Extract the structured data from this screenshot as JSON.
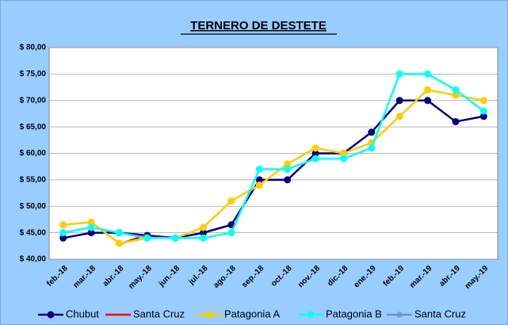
{
  "chart_data": {
    "type": "line",
    "title": "TERNERO DE DESTETE",
    "categories": [
      "feb.-18",
      "mar.-18",
      "abr.-18",
      "may.-18",
      "jun.-18",
      "jul.-18",
      "ago.-18",
      "sep.-18",
      "oct.-18",
      "nov.-18",
      "dic.-18",
      "ene.-19",
      "feb.-19",
      "mar.-19",
      "abr.-19",
      "may.-19"
    ],
    "series": [
      {
        "name": "Chubut",
        "color": "#000080",
        "marker": "circle",
        "values": [
          44,
          45,
          45,
          44.5,
          44,
          45,
          46.5,
          55,
          55,
          60,
          60,
          64,
          70,
          70,
          66,
          67
        ]
      },
      {
        "name": "Santa Cruz",
        "color": "#ff0000",
        "marker": "none",
        "values": [
          null,
          null,
          42.8,
          44.7,
          null,
          null,
          null,
          null,
          null,
          null,
          null,
          null,
          null,
          null,
          null,
          null
        ]
      },
      {
        "name": "Patagonia A",
        "color": "#ffcc00",
        "marker": "circle",
        "values": [
          46.5,
          47,
          43,
          44,
          44,
          46,
          51,
          54,
          58,
          61,
          60,
          62,
          67,
          72,
          71,
          70
        ]
      },
      {
        "name": "Patagonia B",
        "color": "#00ffff",
        "marker": "circle",
        "values": [
          45,
          46,
          45,
          44,
          44,
          44,
          45,
          57,
          57,
          59,
          59,
          61,
          75,
          75,
          72,
          68
        ]
      },
      {
        "name": "Santa Cruz",
        "color": "#6f8fd0",
        "marker": "star",
        "values": [
          null,
          null,
          null,
          null,
          null,
          null,
          null,
          null,
          null,
          null,
          null,
          null,
          null,
          null,
          null,
          null
        ]
      }
    ],
    "ylim": [
      40,
      80
    ],
    "yticks": [
      {
        "value": 40,
        "label": "$ 40,00"
      },
      {
        "value": 45,
        "label": "$ 45,00"
      },
      {
        "value": 50,
        "label": "$ 50,00"
      },
      {
        "value": 55,
        "label": "$ 55,00"
      },
      {
        "value": 60,
        "label": "$ 60,00"
      },
      {
        "value": 65,
        "label": "$ 65,00"
      },
      {
        "value": 70,
        "label": "$ 70,00"
      },
      {
        "value": 75,
        "label": "$ 75,00"
      },
      {
        "value": 80,
        "label": "$ 80,00"
      }
    ],
    "grid": true,
    "legend": "bottom"
  }
}
